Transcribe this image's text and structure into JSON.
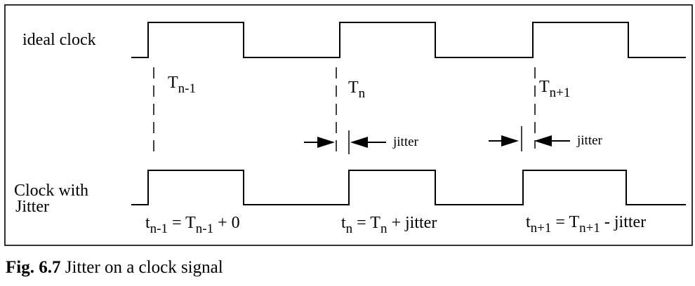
{
  "diagram": {
    "signals": {
      "ideal_label": "ideal clock",
      "jitter_label_line1": "Clock with",
      "jitter_label_line2": "Jitter"
    },
    "periods": [
      {
        "base": "T",
        "sub": "n-1"
      },
      {
        "base": "T",
        "sub": "n"
      },
      {
        "base": "T",
        "sub": "n+1"
      }
    ],
    "jitter_marker_label": "jitter",
    "equations": [
      {
        "t": "t",
        "t_sub": "n-1",
        "eq": " = ",
        "T": "T",
        "T_sub": "n-1",
        "rest": " + 0"
      },
      {
        "t": "t",
        "t_sub": "n",
        "eq": " = ",
        "T": "T",
        "T_sub": "n",
        "rest": " + jitter"
      },
      {
        "t": "t",
        "t_sub": "n+1",
        "eq": " = ",
        "T": "T",
        "T_sub": "n+1",
        "rest": " - jitter"
      }
    ]
  },
  "caption": {
    "number": "Fig. 6.7",
    "text": "Jitter on a clock signal"
  }
}
